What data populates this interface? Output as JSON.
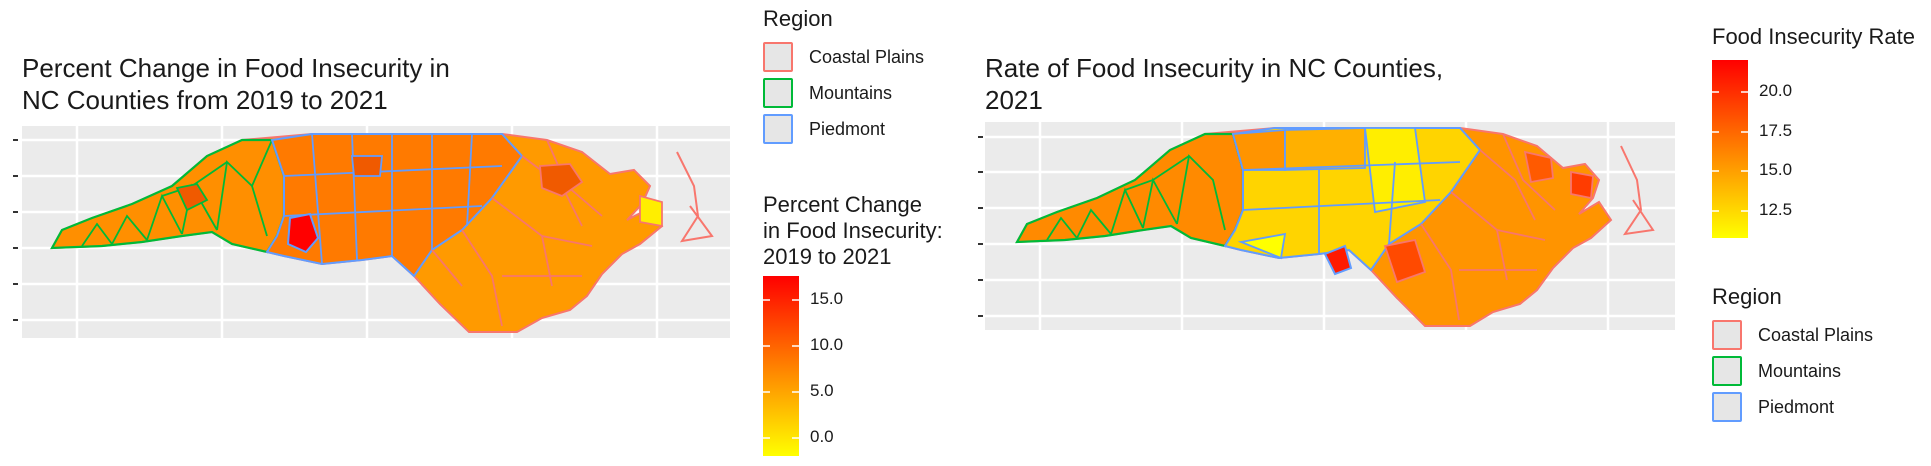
{
  "map1": {
    "title": "Percent Change in Food Insecurity in\nNC Counties from 2019 to 2021",
    "region_legend": {
      "title": "Region",
      "items": [
        {
          "label": "Coastal Plains",
          "color": "#f8766d"
        },
        {
          "label": "Mountains",
          "color": "#00ba38"
        },
        {
          "label": "Piedmont",
          "color": "#619cff"
        }
      ]
    },
    "fill_legend": {
      "title": "Percent Change\nin Food Insecurity:\n2019 to 2021",
      "ticks": [
        "15.0",
        "10.0",
        "5.0",
        "0.0"
      ],
      "gradient": [
        "#ff0000",
        "#ff8000",
        "#ffff00"
      ]
    }
  },
  "map2": {
    "title": "Rate of Food Insecurity in NC Counties,\n2021",
    "fill_legend": {
      "title": "Food Insecurity Rate",
      "ticks": [
        "20.0",
        "17.5",
        "15.0",
        "12.5"
      ],
      "gradient": [
        "#ff0000",
        "#ff8000",
        "#ffff00"
      ]
    },
    "region_legend": {
      "title": "Region",
      "items": [
        {
          "label": "Coastal Plains",
          "color": "#f8766d"
        },
        {
          "label": "Mountains",
          "color": "#00ba38"
        },
        {
          "label": "Piedmont",
          "color": "#619cff"
        }
      ]
    }
  }
}
